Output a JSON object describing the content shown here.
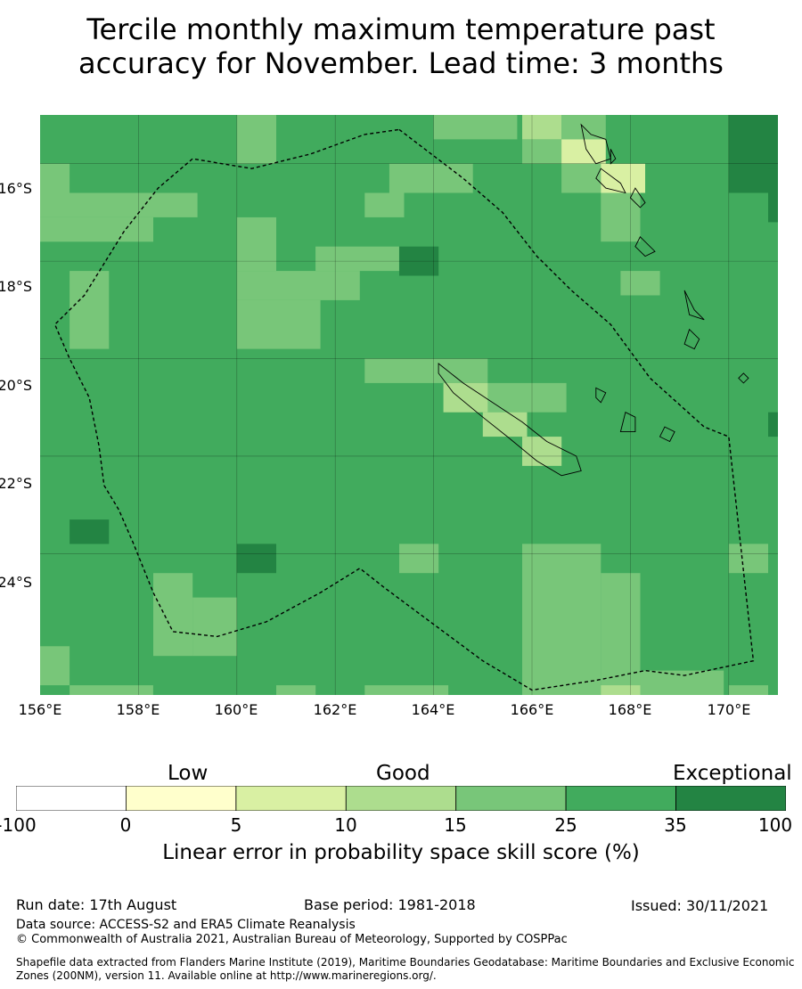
{
  "title_line1": "Tercile monthly maximum temperature past",
  "title_line2": "accuracy for November. Lead time: 3 months",
  "map": {
    "lon_range": [
      156,
      171
    ],
    "lat_range": [
      -26.9,
      -15.0
    ],
    "lat_ticks": [
      "16°S",
      "18°S",
      "20°S",
      "22°S",
      "24°S"
    ],
    "lon_ticks": [
      "156°E",
      "158°E",
      "160°E",
      "162°E",
      "164°E",
      "166°E",
      "168°E",
      "170°E"
    ],
    "background_class": "25-35",
    "patches": [
      {
        "lon": 160.0,
        "lat": -15.0,
        "w": 0.8,
        "h": 1.0,
        "class": "15-25"
      },
      {
        "lon": 164.0,
        "lat": -15.0,
        "w": 1.7,
        "h": 0.5,
        "class": "15-25"
      },
      {
        "lon": 165.8,
        "lat": -15.0,
        "w": 0.8,
        "h": 0.5,
        "class": "10-15"
      },
      {
        "lon": 166.6,
        "lat": -15.0,
        "w": 0.9,
        "h": 0.5,
        "class": "15-25"
      },
      {
        "lon": 165.8,
        "lat": -15.5,
        "w": 0.8,
        "h": 0.5,
        "class": "15-25"
      },
      {
        "lon": 166.6,
        "lat": -15.5,
        "w": 0.9,
        "h": 0.5,
        "class": "5-10"
      },
      {
        "lon": 163.1,
        "lat": -16.0,
        "w": 1.7,
        "h": 0.6,
        "class": "15-25"
      },
      {
        "lon": 166.6,
        "lat": -16.0,
        "w": 0.8,
        "h": 0.6,
        "class": "15-25"
      },
      {
        "lon": 167.4,
        "lat": -16.0,
        "w": 0.9,
        "h": 0.6,
        "class": "5-10"
      },
      {
        "lon": 156.0,
        "lat": -16.0,
        "w": 0.6,
        "h": 0.6,
        "class": "15-25"
      },
      {
        "lon": 156.0,
        "lat": -16.6,
        "w": 3.2,
        "h": 0.5,
        "class": "15-25"
      },
      {
        "lon": 162.6,
        "lat": -16.6,
        "w": 0.8,
        "h": 0.5,
        "class": "15-25"
      },
      {
        "lon": 167.4,
        "lat": -16.6,
        "w": 0.8,
        "h": 1.0,
        "class": "15-25"
      },
      {
        "lon": 156.0,
        "lat": -17.1,
        "w": 2.3,
        "h": 0.5,
        "class": "15-25"
      },
      {
        "lon": 160.0,
        "lat": -17.1,
        "w": 0.8,
        "h": 1.1,
        "class": "15-25"
      },
      {
        "lon": 161.6,
        "lat": -17.7,
        "w": 1.7,
        "h": 0.5,
        "class": "15-25"
      },
      {
        "lon": 163.3,
        "lat": -17.7,
        "w": 0.8,
        "h": 0.6,
        "class": "35-100"
      },
      {
        "lon": 156.6,
        "lat": -18.2,
        "w": 0.8,
        "h": 1.6,
        "class": "15-25"
      },
      {
        "lon": 160.0,
        "lat": -18.2,
        "w": 2.5,
        "h": 0.6,
        "class": "15-25"
      },
      {
        "lon": 160.0,
        "lat": -18.8,
        "w": 1.7,
        "h": 1.0,
        "class": "15-25"
      },
      {
        "lon": 167.8,
        "lat": -18.2,
        "w": 0.8,
        "h": 0.5,
        "class": "15-25"
      },
      {
        "lon": 162.6,
        "lat": -20.0,
        "w": 2.5,
        "h": 0.5,
        "class": "15-25"
      },
      {
        "lon": 164.2,
        "lat": -20.5,
        "w": 2.5,
        "h": 0.6,
        "class": "15-25"
      },
      {
        "lon": 164.2,
        "lat": -20.5,
        "w": 0.9,
        "h": 0.6,
        "class": "10-15"
      },
      {
        "lon": 165.0,
        "lat": -21.1,
        "w": 0.9,
        "h": 0.5,
        "class": "10-15"
      },
      {
        "lon": 165.8,
        "lat": -21.6,
        "w": 0.8,
        "h": 0.6,
        "class": "10-15"
      },
      {
        "lon": 170.0,
        "lat": -15.0,
        "w": 1.0,
        "h": 1.6,
        "class": "35-100"
      },
      {
        "lon": 170.8,
        "lat": -16.1,
        "w": 0.2,
        "h": 1.1,
        "class": "35-100"
      },
      {
        "lon": 170.8,
        "lat": -21.1,
        "w": 0.2,
        "h": 0.5,
        "class": "35-100"
      },
      {
        "lon": 156.6,
        "lat": -23.3,
        "w": 0.8,
        "h": 0.5,
        "class": "35-100"
      },
      {
        "lon": 160.0,
        "lat": -23.8,
        "w": 0.8,
        "h": 0.6,
        "class": "35-100"
      },
      {
        "lon": 163.3,
        "lat": -23.8,
        "w": 0.8,
        "h": 0.6,
        "class": "15-25"
      },
      {
        "lon": 165.8,
        "lat": -23.8,
        "w": 1.6,
        "h": 3.1,
        "class": "15-25"
      },
      {
        "lon": 167.4,
        "lat": -24.4,
        "w": 0.8,
        "h": 2.5,
        "class": "15-25"
      },
      {
        "lon": 168.2,
        "lat": -26.4,
        "w": 1.7,
        "h": 0.5,
        "class": "15-25"
      },
      {
        "lon": 167.4,
        "lat": -26.7,
        "w": 0.8,
        "h": 0.2,
        "class": "10-15"
      },
      {
        "lon": 170.0,
        "lat": -23.8,
        "w": 0.8,
        "h": 0.6,
        "class": "15-25"
      },
      {
        "lon": 158.3,
        "lat": -24.4,
        "w": 0.8,
        "h": 1.7,
        "class": "15-25"
      },
      {
        "lon": 159.1,
        "lat": -24.9,
        "w": 0.9,
        "h": 1.2,
        "class": "15-25"
      },
      {
        "lon": 156.0,
        "lat": -25.9,
        "w": 0.6,
        "h": 0.8,
        "class": "15-25"
      },
      {
        "lon": 156.6,
        "lat": -26.7,
        "w": 1.7,
        "h": 0.2,
        "class": "15-25"
      },
      {
        "lon": 160.8,
        "lat": -26.7,
        "w": 0.8,
        "h": 0.2,
        "class": "15-25"
      },
      {
        "lon": 162.6,
        "lat": -26.7,
        "w": 1.7,
        "h": 0.2,
        "class": "15-25"
      },
      {
        "lon": 170.0,
        "lat": -26.7,
        "w": 0.8,
        "h": 0.2,
        "class": "15-25"
      }
    ],
    "eez_boundary": [
      [
        163.3,
        -15.3
      ],
      [
        164.6,
        -16.3
      ],
      [
        165.4,
        -17.0
      ],
      [
        166.1,
        -17.9
      ],
      [
        166.8,
        -18.6
      ],
      [
        167.6,
        -19.3
      ],
      [
        168.4,
        -20.4
      ],
      [
        169.5,
        -21.4
      ],
      [
        170.0,
        -21.6
      ],
      [
        170.5,
        -26.2
      ],
      [
        169.1,
        -26.5
      ],
      [
        168.3,
        -26.4
      ],
      [
        167.3,
        -26.6
      ],
      [
        166.0,
        -26.8
      ],
      [
        165.0,
        -26.2
      ],
      [
        163.8,
        -25.3
      ],
      [
        163.0,
        -24.7
      ],
      [
        162.5,
        -24.3
      ],
      [
        161.7,
        -24.8
      ],
      [
        160.6,
        -25.4
      ],
      [
        159.6,
        -25.7
      ],
      [
        158.7,
        -25.6
      ],
      [
        158.3,
        -24.8
      ],
      [
        157.9,
        -23.8
      ],
      [
        157.6,
        -23.1
      ],
      [
        157.3,
        -22.6
      ],
      [
        157.2,
        -21.8
      ],
      [
        157.0,
        -20.8
      ],
      [
        156.6,
        -20.0
      ],
      [
        156.3,
        -19.3
      ],
      [
        156.9,
        -18.7
      ],
      [
        157.7,
        -17.4
      ],
      [
        158.4,
        -16.5
      ],
      [
        159.1,
        -15.9
      ],
      [
        160.3,
        -16.1
      ],
      [
        161.5,
        -15.8
      ],
      [
        162.6,
        -15.4
      ],
      [
        163.3,
        -15.3
      ]
    ],
    "coastlines": [
      [
        [
          164.1,
          -20.1
        ],
        [
          164.6,
          -20.5
        ],
        [
          165.2,
          -20.9
        ],
        [
          165.8,
          -21.3
        ],
        [
          166.3,
          -21.7
        ],
        [
          166.9,
          -22.0
        ],
        [
          167.0,
          -22.3
        ],
        [
          166.6,
          -22.4
        ],
        [
          166.1,
          -22.1
        ],
        [
          165.5,
          -21.6
        ],
        [
          165.0,
          -21.2
        ],
        [
          164.4,
          -20.7
        ],
        [
          164.1,
          -20.3
        ],
        [
          164.1,
          -20.1
        ]
      ],
      [
        [
          167.0,
          -15.2
        ],
        [
          167.1,
          -15.7
        ],
        [
          167.3,
          -16.0
        ],
        [
          167.6,
          -15.9
        ],
        [
          167.5,
          -15.5
        ],
        [
          167.2,
          -15.4
        ],
        [
          167.0,
          -15.2
        ]
      ],
      [
        [
          167.4,
          -16.1
        ],
        [
          167.8,
          -16.4
        ],
        [
          167.9,
          -16.6
        ],
        [
          167.5,
          -16.5
        ],
        [
          167.3,
          -16.3
        ],
        [
          167.4,
          -16.1
        ]
      ],
      [
        [
          168.1,
          -16.5
        ],
        [
          168.3,
          -16.8
        ],
        [
          168.2,
          -16.9
        ],
        [
          168.0,
          -16.7
        ],
        [
          168.1,
          -16.5
        ]
      ],
      [
        [
          168.2,
          -17.5
        ],
        [
          168.5,
          -17.8
        ],
        [
          168.3,
          -17.9
        ],
        [
          168.1,
          -17.7
        ],
        [
          168.2,
          -17.5
        ]
      ],
      [
        [
          169.1,
          -18.6
        ],
        [
          169.3,
          -19.0
        ],
        [
          169.5,
          -19.2
        ],
        [
          169.2,
          -19.1
        ],
        [
          169.1,
          -18.6
        ]
      ],
      [
        [
          169.2,
          -19.4
        ],
        [
          169.4,
          -19.6
        ],
        [
          169.3,
          -19.8
        ],
        [
          169.1,
          -19.7
        ],
        [
          169.2,
          -19.4
        ]
      ],
      [
        [
          167.9,
          -21.1
        ],
        [
          168.1,
          -21.2
        ],
        [
          168.1,
          -21.5
        ],
        [
          167.8,
          -21.5
        ],
        [
          167.9,
          -21.1
        ]
      ],
      [
        [
          168.7,
          -21.4
        ],
        [
          168.9,
          -21.5
        ],
        [
          168.8,
          -21.7
        ],
        [
          168.6,
          -21.6
        ],
        [
          168.7,
          -21.4
        ]
      ],
      [
        [
          167.3,
          -20.6
        ],
        [
          167.5,
          -20.7
        ],
        [
          167.4,
          -20.9
        ],
        [
          167.3,
          -20.8
        ],
        [
          167.3,
          -20.6
        ]
      ],
      [
        [
          167.6,
          -15.7
        ],
        [
          167.7,
          -15.9
        ],
        [
          167.6,
          -16.0
        ],
        [
          167.6,
          -15.7
        ]
      ],
      [
        [
          170.3,
          -20.3
        ],
        [
          170.4,
          -20.4
        ],
        [
          170.3,
          -20.5
        ],
        [
          170.2,
          -20.4
        ],
        [
          170.3,
          -20.3
        ]
      ]
    ]
  },
  "colorbar": {
    "classes": [
      {
        "key": "<0",
        "color": "#ffffff"
      },
      {
        "key": "0-5",
        "color": "#ffffcc"
      },
      {
        "key": "5-10",
        "color": "#d9f0a3"
      },
      {
        "key": "10-15",
        "color": "#addd8e"
      },
      {
        "key": "15-25",
        "color": "#78c679"
      },
      {
        "key": "25-35",
        "color": "#41ab5d"
      },
      {
        "key": "35-100",
        "color": "#238443"
      }
    ],
    "ticks": [
      "-100",
      "0",
      "5",
      "10",
      "15",
      "25",
      "35",
      "100"
    ],
    "word_low": "Low",
    "word_good": "Good",
    "word_exceptional": "Exceptional",
    "label": "Linear error in probability space skill score (%)"
  },
  "footer": {
    "run_date": "Run date: 17th August",
    "base_period": "Base period: 1981-2018",
    "issued": "Issued: 30/11/2021",
    "data_source": "Data source: ACCESS-S2 and ERA5 Climate Reanalysis",
    "copyright": "© Commonwealth of Australia 2021, Australian Bureau of Meteorology, Supported by COSPPac",
    "shapefile_line1": "Shapefile data extracted from Flanders Marine Institute (2019), Maritime Boundaries Geodatabase: Maritime Boundaries and Exclusive Economic",
    "shapefile_line2": "Zones (200NM), version 11. Available online at http://www.marineregions.org/."
  }
}
